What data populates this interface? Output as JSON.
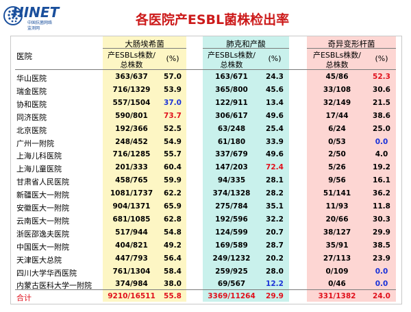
{
  "logo": {
    "word": "HINET",
    "sub1": "中国抗菌网络",
    "sub2": "监测网"
  },
  "title": "各医院产ESBL菌株检出率",
  "header": {
    "hospital": "医院",
    "groups": [
      "大肠埃希菌",
      "肺克和产酸",
      "奇异变形杆菌"
    ],
    "count_label_line1": "产ESBLs株数/",
    "count_label_line2": "总株数",
    "pct_label": "(%)"
  },
  "rows": [
    {
      "name": "华山医院",
      "ec": "363/637",
      "ec_p": "57.0",
      "kp": "163/671",
      "kp_p": "24.3",
      "pm": "45/86",
      "pm_p": "52.3",
      "ec_c": "",
      "kp_c": "",
      "pm_c": "red"
    },
    {
      "name": "瑞金医院",
      "ec": "716/1329",
      "ec_p": "53.9",
      "kp": "365/800",
      "kp_p": "45.6",
      "pm": "33/108",
      "pm_p": "30.6",
      "ec_c": "",
      "kp_c": "",
      "pm_c": ""
    },
    {
      "name": "协和医院",
      "ec": "557/1504",
      "ec_p": "37.0",
      "kp": "122/911",
      "kp_p": "13.4",
      "pm": "32/149",
      "pm_p": "21.5",
      "ec_c": "blue",
      "kp_c": "",
      "pm_c": ""
    },
    {
      "name": "同济医院",
      "ec": "590/801",
      "ec_p": "73.7",
      "kp": "306/617",
      "kp_p": "49.6",
      "pm": "17/44",
      "pm_p": "38.6",
      "ec_c": "red",
      "kp_c": "",
      "pm_c": ""
    },
    {
      "name": "北京医院",
      "ec": "192/366",
      "ec_p": "52.5",
      "kp": "63/248",
      "kp_p": "25.4",
      "pm": "6/24",
      "pm_p": "25.0",
      "ec_c": "",
      "kp_c": "",
      "pm_c": ""
    },
    {
      "name": "广州一附院",
      "ec": "248/452",
      "ec_p": "54.9",
      "kp": "61/180",
      "kp_p": "33.9",
      "pm": "0/53",
      "pm_p": "0.0",
      "ec_c": "",
      "kp_c": "",
      "pm_c": "blue"
    },
    {
      "name": "上海儿科医院",
      "ec": "716/1285",
      "ec_p": "55.7",
      "kp": "337/679",
      "kp_p": "49.6",
      "pm": "2/50",
      "pm_p": "4.0",
      "ec_c": "",
      "kp_c": "",
      "pm_c": ""
    },
    {
      "name": "上海儿童医院",
      "ec": "201/333",
      "ec_p": "60.4",
      "kp": "147/203",
      "kp_p": "72.4",
      "pm": "5/26",
      "pm_p": "19.2",
      "ec_c": "",
      "kp_c": "red",
      "pm_c": ""
    },
    {
      "name": "甘肃省人民医院",
      "ec": "458/765",
      "ec_p": "59.9",
      "kp": "94/335",
      "kp_p": "28.1",
      "pm": "9/56",
      "pm_p": "16.1",
      "ec_c": "",
      "kp_c": "",
      "pm_c": ""
    },
    {
      "name": "新疆医大一附院",
      "ec": "1081/1737",
      "ec_p": "62.2",
      "kp": "374/1328",
      "kp_p": "28.2",
      "pm": "51/141",
      "pm_p": "36.2",
      "ec_c": "",
      "kp_c": "",
      "pm_c": ""
    },
    {
      "name": "安徽医大一附院",
      "ec": "904/1371",
      "ec_p": "65.9",
      "kp": "275/784",
      "kp_p": "35.1",
      "pm": "11/93",
      "pm_p": "11.8",
      "ec_c": "",
      "kp_c": "",
      "pm_c": ""
    },
    {
      "name": "云南医大一附院",
      "ec": "681/1085",
      "ec_p": "62.8",
      "kp": "192/596",
      "kp_p": "32.2",
      "pm": "20/66",
      "pm_p": "30.3",
      "ec_c": "",
      "kp_c": "",
      "pm_c": ""
    },
    {
      "name": "浙医邵逸夫医院",
      "ec": "517/944",
      "ec_p": "54.8",
      "kp": "124/599",
      "kp_p": "20.7",
      "pm": "38/127",
      "pm_p": "29.9",
      "ec_c": "",
      "kp_c": "",
      "pm_c": ""
    },
    {
      "name": "中国医大一附院",
      "ec": "404/821",
      "ec_p": "49.2",
      "kp": "169/589",
      "kp_p": "28.7",
      "pm": "35/91",
      "pm_p": "38.5",
      "ec_c": "",
      "kp_c": "",
      "pm_c": ""
    },
    {
      "name": "天津医大总院",
      "ec": "447/793",
      "ec_p": "56.4",
      "kp": "249/1232",
      "kp_p": "20.2",
      "pm": "27/113",
      "pm_p": "23.9",
      "ec_c": "",
      "kp_c": "",
      "pm_c": ""
    },
    {
      "name": "四川大学华西医院",
      "ec": "761/1304",
      "ec_p": "58.4",
      "kp": "259/925",
      "kp_p": "28.0",
      "pm": "0/109",
      "pm_p": "0.0",
      "ec_c": "",
      "kp_c": "",
      "pm_c": "blue"
    },
    {
      "name": "内蒙古医科大学一附院",
      "ec": "374/984",
      "ec_p": "38.0",
      "kp": "69/567",
      "kp_p": "12.2",
      "pm": "0/46",
      "pm_p": "0.0",
      "ec_c": "",
      "kp_c": "blue",
      "pm_c": "blue"
    }
  ],
  "total": {
    "name": "合计",
    "ec": "9210/16511",
    "ec_p": "55.8",
    "kp": "3369/11264",
    "kp_p": "29.9",
    "pm": "331/1382",
    "pm_p": "24.0"
  },
  "colors": {
    "title": "#cc1a1a",
    "high": "#e0101c",
    "low": "#1a32d8",
    "band1": "#fdf6c4",
    "band2": "#c9f1ec",
    "band3": "#fdd6d3"
  }
}
